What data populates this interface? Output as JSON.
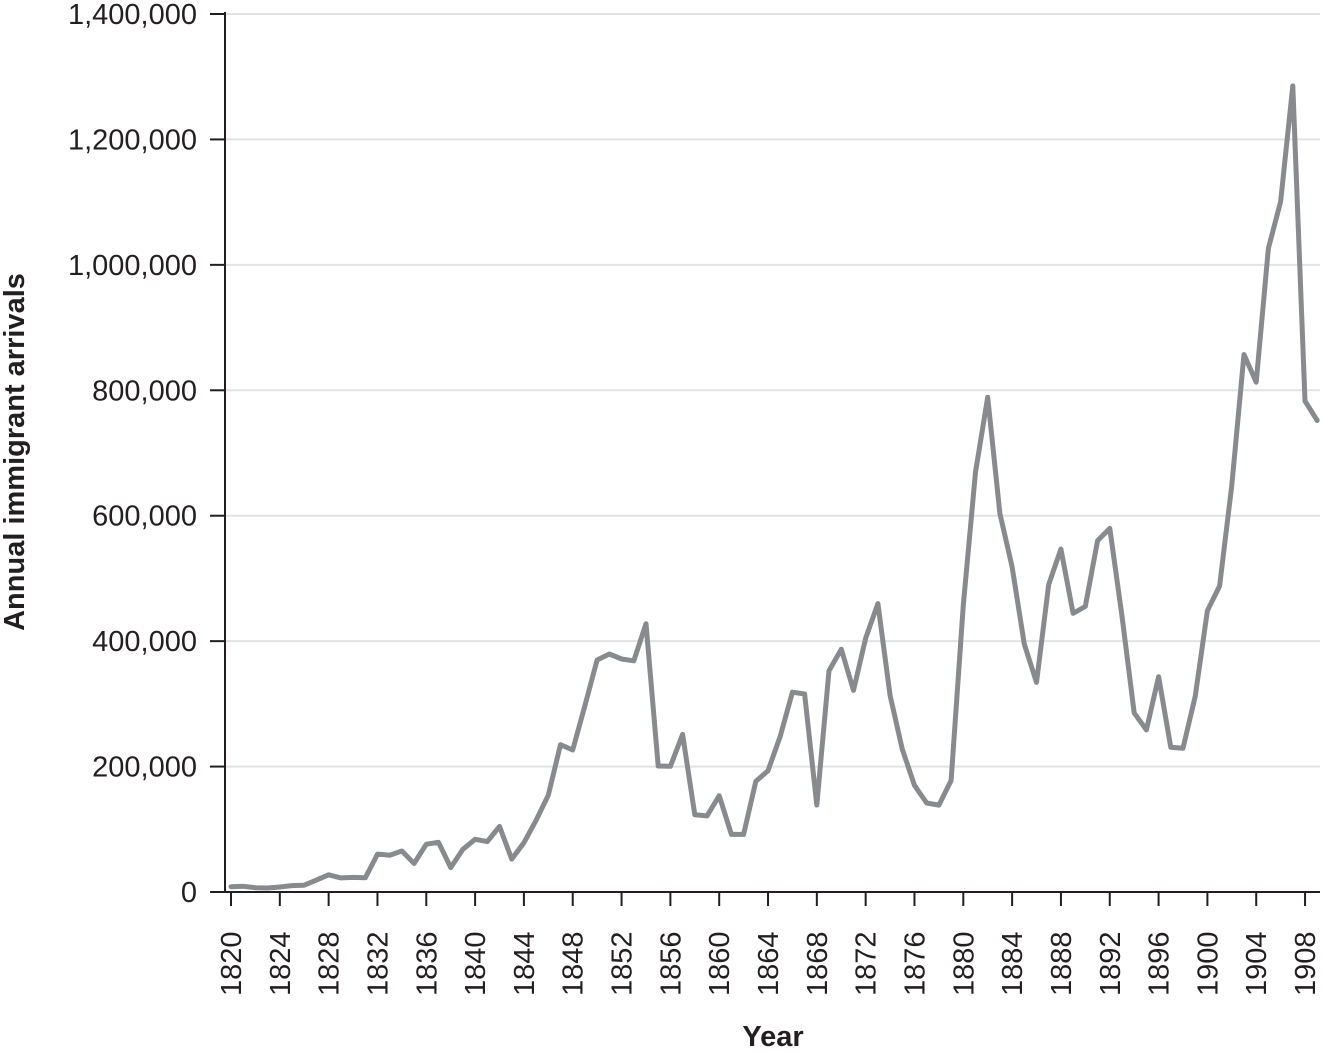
{
  "chart_data": {
    "type": "line",
    "title": "",
    "xlabel": "Year",
    "ylabel": "Annual immigrant arrivals",
    "xlim": [
      1820,
      1909
    ],
    "ylim": [
      0,
      1400000
    ],
    "grid": {
      "y": true,
      "x": false
    },
    "legend": null,
    "line_color": "#898a8e",
    "x_ticks": [
      "1820",
      "1824",
      "1828",
      "1832",
      "1836",
      "1840",
      "1844",
      "1848",
      "1852",
      "1856",
      "1860",
      "1864",
      "1868",
      "1872",
      "1876",
      "1880",
      "1884",
      "1888",
      "1892",
      "1896",
      "1900",
      "1904",
      "1908"
    ],
    "y_ticks": [
      "0",
      "200,000",
      "400,000",
      "600,000",
      "800,000",
      "1,000,000",
      "1,200,000",
      "1,400,000"
    ],
    "y_tick_values": [
      0,
      200000,
      400000,
      600000,
      800000,
      1000000,
      1200000,
      1400000
    ],
    "x": [
      1820,
      1821,
      1822,
      1823,
      1824,
      1825,
      1826,
      1827,
      1828,
      1829,
      1830,
      1831,
      1832,
      1833,
      1834,
      1835,
      1836,
      1837,
      1838,
      1839,
      1840,
      1841,
      1842,
      1843,
      1844,
      1845,
      1846,
      1847,
      1848,
      1849,
      1850,
      1851,
      1852,
      1853,
      1854,
      1855,
      1856,
      1857,
      1858,
      1859,
      1860,
      1861,
      1862,
      1863,
      1864,
      1865,
      1866,
      1867,
      1868,
      1869,
      1870,
      1871,
      1872,
      1873,
      1874,
      1875,
      1876,
      1877,
      1878,
      1879,
      1880,
      1881,
      1882,
      1883,
      1884,
      1885,
      1886,
      1887,
      1888,
      1889,
      1890,
      1891,
      1892,
      1893,
      1894,
      1895,
      1896,
      1897,
      1898,
      1899,
      1900,
      1901,
      1902,
      1903,
      1904,
      1905,
      1906,
      1907,
      1908,
      1909
    ],
    "series": [
      {
        "name": "Annual immigrant arrivals",
        "values": [
          8400,
          9100,
          6900,
          6400,
          7900,
          10200,
          10800,
          18900,
          27400,
          22500,
          23300,
          22600,
          60500,
          58600,
          65400,
          45400,
          76200,
          79300,
          38900,
          68100,
          84100,
          80300,
          104600,
          52500,
          78600,
          114400,
          154400,
          235000,
          226500,
          297000,
          369900,
          379500,
          371600,
          368600,
          427800,
          200900,
          200400,
          251300,
          123100,
          121300,
          153600,
          91900,
          91900,
          176300,
          193400,
          248100,
          318600,
          315700,
          138800,
          352800,
          387200,
          321400,
          404800,
          459800,
          313300,
          227500,
          169900,
          141900,
          138500,
          177800,
          457300,
          669400,
          788900,
          603300,
          518600,
          395300,
          334200,
          490100,
          546900,
          444400,
          455300,
          560300,
          579700,
          440000,
          285600,
          258500,
          343300,
          230800,
          229300,
          311700,
          448600,
          487900,
          648700,
          857000,
          812900,
          1026500,
          1100700,
          1285300,
          782900,
          751800
        ]
      }
    ]
  },
  "axes": {
    "x_title": "Year",
    "y_title": "Annual immigrant arrivals"
  }
}
